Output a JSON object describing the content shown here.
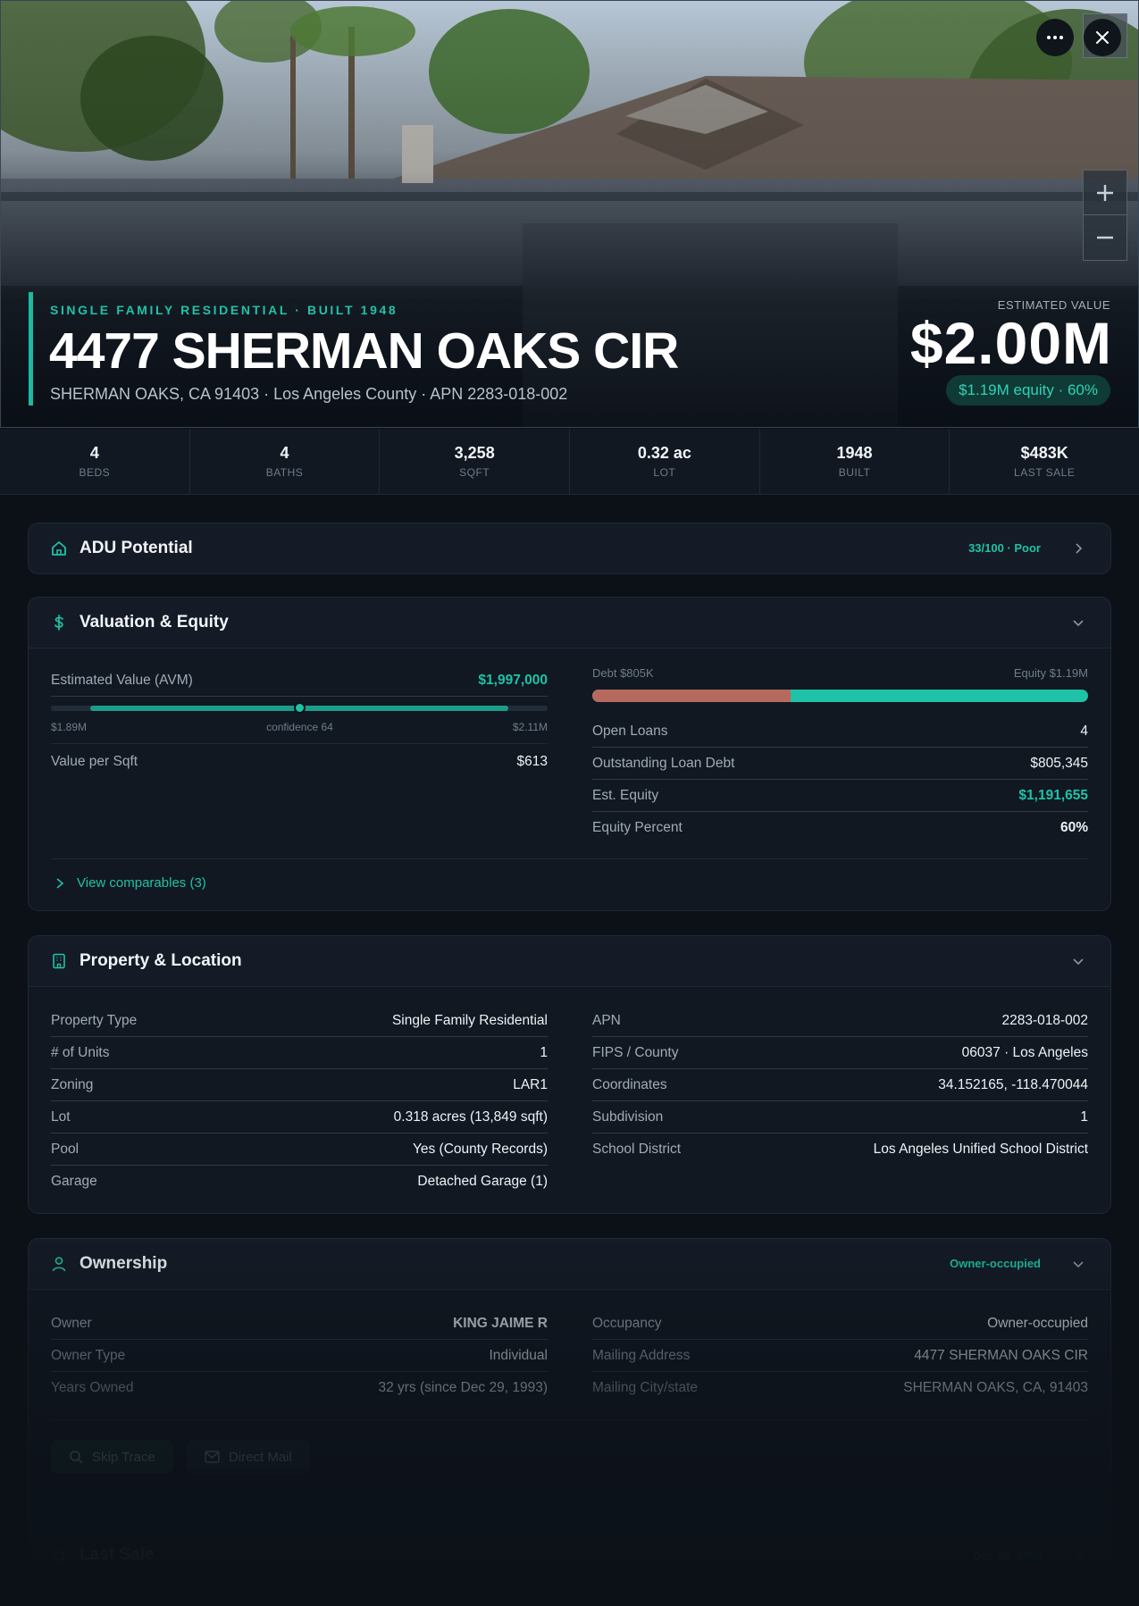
{
  "hero": {
    "subtitle": "SINGLE FAMILY RESIDENTIAL · BUILT 1948",
    "title": "4477 SHERMAN OAKS CIR",
    "address": "SHERMAN OAKS, CA 91403 · Los Angeles County · APN 2283-018-002",
    "estimated_label": "ESTIMATED VALUE",
    "estimated_value": "$2.00M",
    "equity_pill": "$1.19M equity · 60%",
    "icons": [
      "more-icon",
      "close-icon",
      "zoom-in-icon",
      "zoom-out-icon"
    ]
  },
  "stats": [
    {
      "value": "4",
      "label": "BEDS"
    },
    {
      "value": "4",
      "label": "BATHS"
    },
    {
      "value": "3,258",
      "label": "SQFT"
    },
    {
      "value": "0.32 ac",
      "label": "LOT"
    },
    {
      "value": "1948",
      "label": "BUILT"
    },
    {
      "value": "$483K",
      "label": "LAST SALE"
    }
  ],
  "adu": {
    "title": "ADU Potential",
    "badge": "33/100 · Poor"
  },
  "valuation": {
    "title": "Valuation & Equity",
    "avm_label": "Estimated Value (AVM)",
    "avm_value": "$1,997,000",
    "avm_low": "$1.89M",
    "avm_confidence": "confidence 64",
    "avm_high": "$2.11M",
    "avm_range_fraction": [
      0.08,
      0.92
    ],
    "avm_point_fraction": 0.5,
    "vps_label": "Value per Sqft",
    "vps_value": "$613",
    "debt_label": "Debt $805K",
    "equity_label": "Equity $1.19M",
    "debt_fraction": 0.4,
    "rows": [
      {
        "k": "Open Loans",
        "v": "4"
      },
      {
        "k": "Outstanding Loan Debt",
        "v": "$805,345"
      },
      {
        "k": "Est. Equity",
        "v": "$1,191,655"
      },
      {
        "k": "Equity Percent",
        "v": "60%"
      }
    ],
    "comparables": "View comparables (3)"
  },
  "property": {
    "title": "Property & Location",
    "left": [
      {
        "k": "Property Type",
        "v": "Single Family Residential"
      },
      {
        "k": "# of Units",
        "v": "1"
      },
      {
        "k": "Zoning",
        "v": "LAR1"
      },
      {
        "k": "Lot",
        "v": "0.318 acres (13,849 sqft)"
      },
      {
        "k": "Pool",
        "v": "Yes (County Records)"
      },
      {
        "k": "Garage",
        "v": "Detached Garage (1)"
      }
    ],
    "right": [
      {
        "k": "APN",
        "v": "2283-018-002"
      },
      {
        "k": "FIPS / County",
        "v": "06037 · Los Angeles"
      },
      {
        "k": "Coordinates",
        "v": "34.152165, -118.470044"
      },
      {
        "k": "Subdivision",
        "v": "1"
      },
      {
        "k": "School District",
        "v": "Los Angeles Unified School District"
      }
    ]
  },
  "ownership": {
    "title": "Ownership",
    "badge": "Owner-occupied",
    "left": [
      {
        "k": "Owner",
        "v": "KING JAIME R"
      },
      {
        "k": "Owner Type",
        "v": "Individual"
      },
      {
        "k": "Years Owned",
        "v": "32 yrs (since Dec 29, 1993)"
      }
    ],
    "right": [
      {
        "k": "Occupancy",
        "v": "Owner-occupied"
      },
      {
        "k": "Mailing Address",
        "v": "4477 SHERMAN OAKS CIR"
      },
      {
        "k": "Mailing City/state",
        "v": "SHERMAN OAKS, CA, 91403"
      }
    ],
    "skip_trace": "Skip Trace",
    "direct_mail": "Direct Mail"
  },
  "last_sale": {
    "title": "Last Sale",
    "badge": "Dec 29, 1993"
  },
  "colors": {
    "accent": "#1fc2a7",
    "debt": "#b66a5e",
    "background": "#0c1118",
    "card": "#141b26"
  }
}
